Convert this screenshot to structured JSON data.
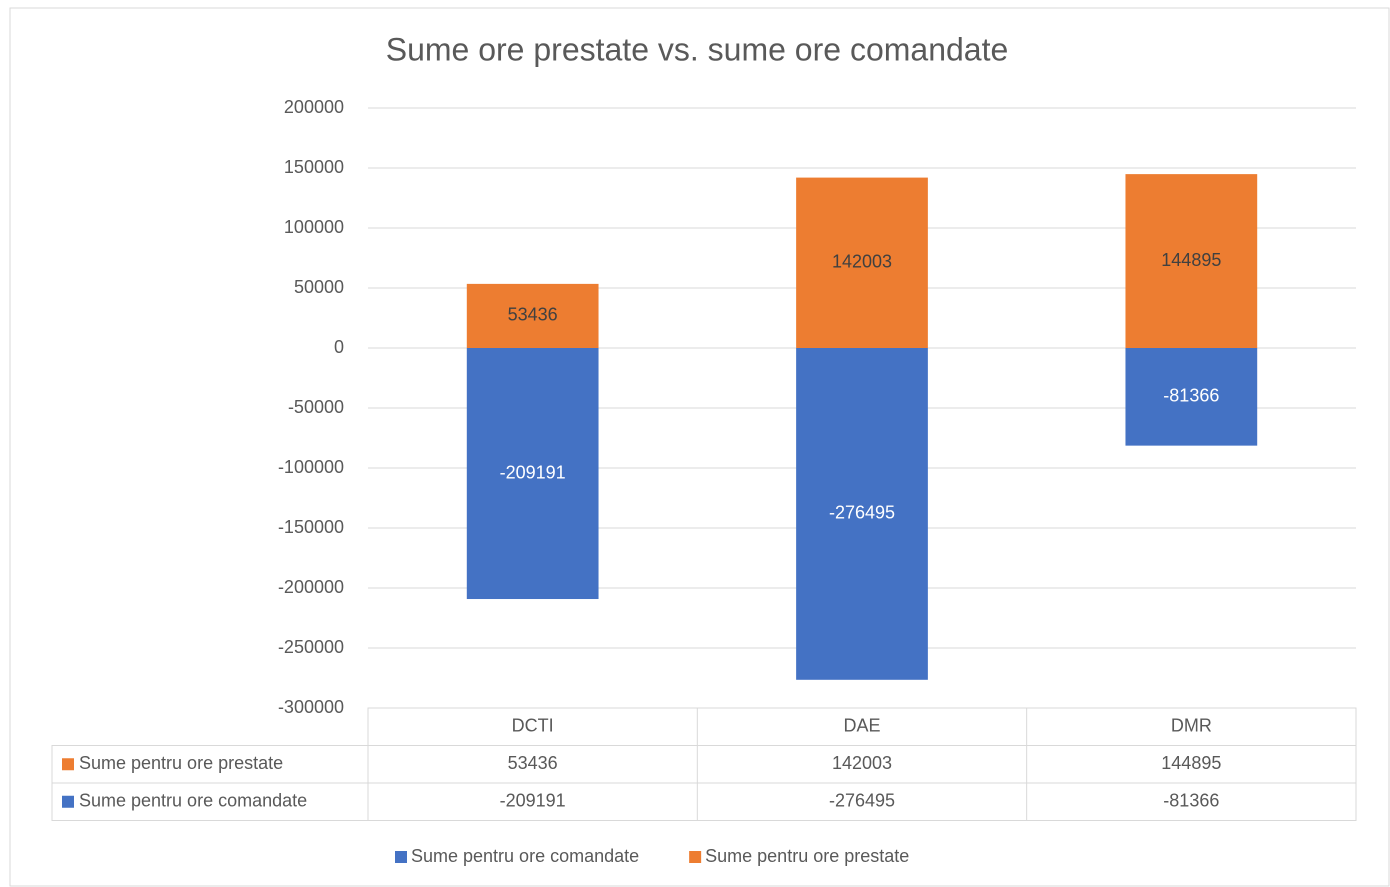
{
  "chart_data": {
    "type": "bar",
    "stacked": true,
    "title": "Sume ore prestate vs. sume ore comandate",
    "categories": [
      "DCTI",
      "DAE",
      "DMR"
    ],
    "series": [
      {
        "name": "Sume pentru ore comandate",
        "color": "#4472c4",
        "values": [
          -209191,
          -276495,
          -81366
        ]
      },
      {
        "name": "Sume pentru ore prestate",
        "color": "#ed7d31",
        "values": [
          53436,
          142003,
          144895
        ]
      }
    ],
    "ylim": [
      -300000,
      200000
    ],
    "yticks": [
      -300000,
      -250000,
      -200000,
      -150000,
      -100000,
      -50000,
      0,
      50000,
      100000,
      150000,
      200000
    ],
    "grid": true,
    "data_table": true,
    "legend": "bottom"
  }
}
